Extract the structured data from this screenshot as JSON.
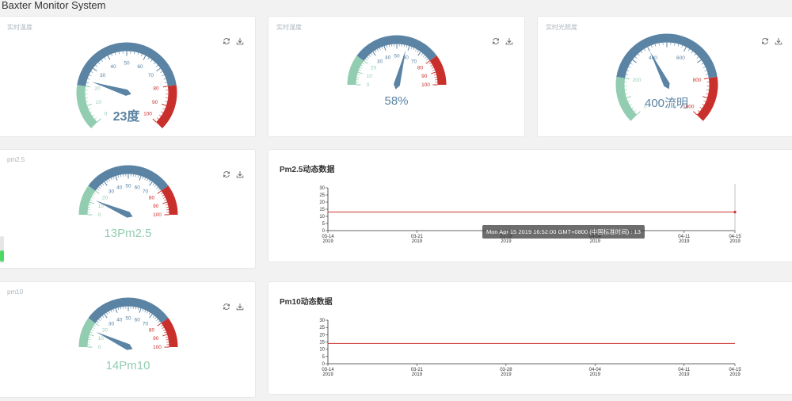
{
  "app": {
    "title": "Baxter Monitor System"
  },
  "icons": {
    "refresh": "refresh-icon",
    "download": "download-icon"
  },
  "colors": {
    "blue": "#5a83a4",
    "green": "#92cdb1",
    "red": "#c9302c",
    "ticks": "#5a83a4"
  },
  "gauges": {
    "temperature": {
      "label": "实时温度",
      "value": 23,
      "min": 0,
      "max": 100,
      "ticks": [
        "0",
        "10",
        "20",
        "30",
        "40",
        "50",
        "60",
        "70",
        "80",
        "90",
        "100"
      ],
      "value_text": "23度"
    },
    "humidity": {
      "label": "实时湿度",
      "value": 58,
      "min": 0,
      "max": 100,
      "ticks": [
        "0",
        "10",
        "20",
        "30",
        "40",
        "50",
        "60",
        "70",
        "80",
        "90",
        "100"
      ],
      "value_text": "58%"
    },
    "light": {
      "label": "实时光照度",
      "value": 400,
      "min": 0,
      "max": 1000,
      "ticks": [
        "0",
        "200",
        "400",
        "600",
        "800",
        "1000"
      ],
      "value_text": "400流明"
    },
    "pm25": {
      "label": "pm2.5",
      "value": 13,
      "min": 0,
      "max": 100,
      "ticks": [
        "0",
        "10",
        "20",
        "30",
        "40",
        "50",
        "60",
        "70",
        "80",
        "90",
        "100"
      ],
      "value_text": "13Pm2.5"
    },
    "pm10": {
      "label": "pm10",
      "value": 14,
      "min": 0,
      "max": 100,
      "ticks": [
        "0",
        "10",
        "20",
        "30",
        "40",
        "50",
        "60",
        "70",
        "80",
        "90",
        "100"
      ],
      "value_text": "14Pm10"
    }
  },
  "charts": {
    "pm25": {
      "title": "Pm2.5动态数据",
      "chart_data": {
        "type": "line",
        "title": "Pm2.5动态数据",
        "y_ticks": [
          "0",
          "5",
          "10",
          "15",
          "20",
          "25",
          "30"
        ],
        "ylim": [
          0,
          30
        ],
        "x_ticks": [
          [
            "03-14",
            "2019"
          ],
          [
            "03-21",
            "2019"
          ],
          [
            "03-28",
            "2019"
          ],
          [
            "04-04",
            "2019"
          ],
          [
            "04-11",
            "2019"
          ],
          [
            "04-15",
            "2019"
          ]
        ],
        "xlim": [
          "2019-03-14",
          "2019-04-15"
        ],
        "series": [
          {
            "x": [
              "2019-03-14",
              "2019-04-15"
            ],
            "values": [
              13,
              13
            ]
          }
        ]
      },
      "tooltip": "Mon Apr 15 2019 16:52:00 GMT+0800 (中国标准时间) : 13"
    },
    "pm10": {
      "title": "Pm10动态数据",
      "chart_data": {
        "type": "line",
        "title": "Pm10动态数据",
        "y_ticks": [
          "0",
          "5",
          "10",
          "15",
          "20",
          "25",
          "30"
        ],
        "ylim": [
          0,
          30
        ],
        "x_ticks": [
          [
            "03-14",
            "2019"
          ],
          [
            "03-21",
            "2019"
          ],
          [
            "03-28",
            "2019"
          ],
          [
            "04-04",
            "2019"
          ],
          [
            "04-11",
            "2019"
          ],
          [
            "04-15",
            "2019"
          ]
        ],
        "xlim": [
          "2019-03-14",
          "2019-04-15"
        ],
        "series": [
          {
            "x": [
              "2019-03-14",
              "2019-04-15"
            ],
            "values": [
              14,
              14
            ]
          }
        ]
      }
    }
  }
}
